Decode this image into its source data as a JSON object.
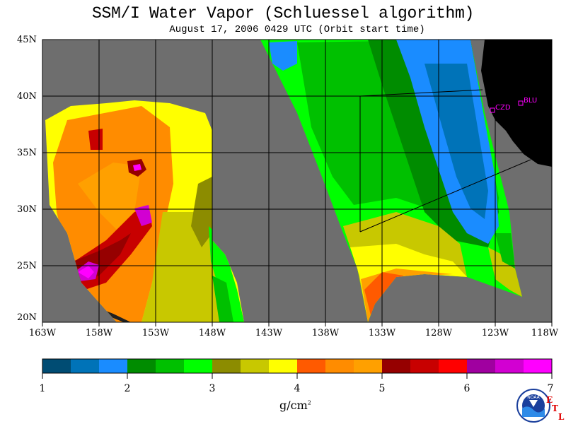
{
  "title": "SSM/I Water Vapor (Schluessel algorithm)",
  "subtitle": "August 17, 2006  0429 UTC  (Orbit start time)",
  "lat_labels": [
    "45N",
    "40N",
    "35N",
    "30N",
    "25N",
    "20N"
  ],
  "lon_labels": [
    "163W",
    "158W",
    "153W",
    "148W",
    "143W",
    "138W",
    "133W",
    "128W",
    "123W",
    "118W"
  ],
  "colorbar": {
    "tick_labels": [
      "1",
      "2",
      "3",
      "4",
      "5",
      "6",
      "7"
    ],
    "units": "g/cm",
    "units_exp": "2",
    "colors": [
      "#004c73",
      "#0073b8",
      "#1a8cff",
      "#008c00",
      "#00c000",
      "#00ff00",
      "#8c8c00",
      "#c8c800",
      "#ffff00",
      "#ff5a00",
      "#ff8c00",
      "#ffa000",
      "#960000",
      "#c80000",
      "#ff0000",
      "#a000a0",
      "#d200d2",
      "#ff00ff"
    ]
  },
  "sites": [
    {
      "label": "CZD",
      "lon": -123.0,
      "lat": 38.6
    },
    {
      "label": "BLU",
      "lon": -120.8,
      "lat": 39.3
    }
  ],
  "logo": {
    "text": "NOAA",
    "icon": "noaa-logo-icon"
  },
  "etl": [
    "E",
    "T",
    "L"
  ],
  "colors": {
    "background_gray": "#6e6e6e",
    "land": "#000000",
    "site_color": "#ff00ff",
    "etl_color": "#e00000"
  }
}
